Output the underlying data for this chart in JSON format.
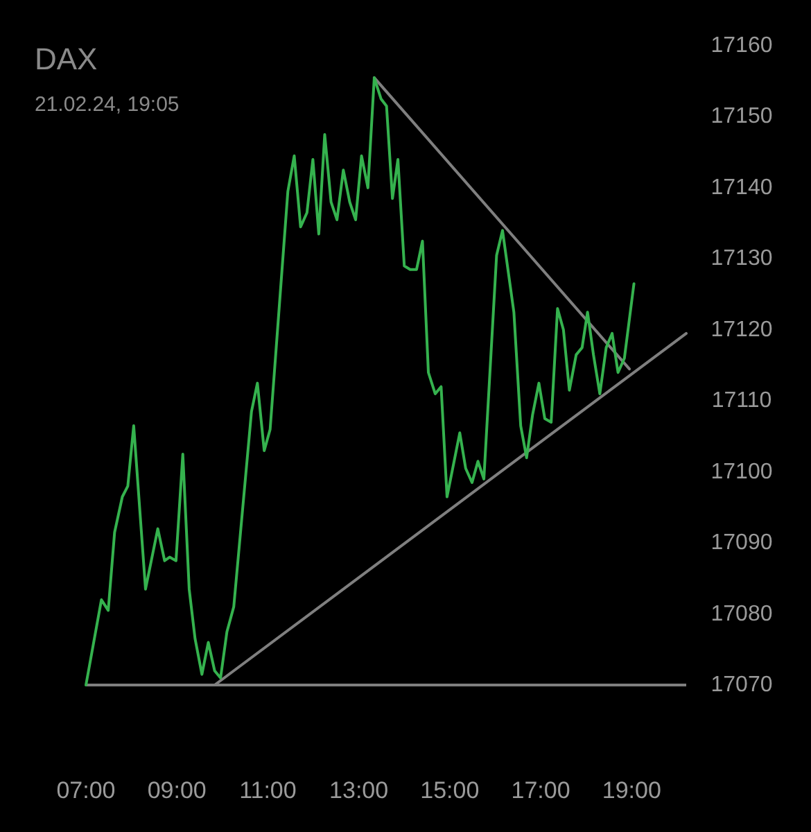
{
  "chart_data": {
    "type": "line",
    "title": "DAX",
    "subtitle": "21.02.24, 19:05",
    "x": [
      7.0,
      7.34,
      7.49,
      7.63,
      7.8,
      7.92,
      8.05,
      8.31,
      8.58,
      8.73,
      8.84,
      8.98,
      9.13,
      9.27,
      9.4,
      9.55,
      9.69,
      9.83,
      9.96,
      10.1,
      10.25,
      10.64,
      10.77,
      10.92,
      11.05,
      11.44,
      11.58,
      11.72,
      11.86,
      11.99,
      12.12,
      12.25,
      12.39,
      12.52,
      12.66,
      12.8,
      12.93,
      13.06,
      13.2,
      13.34,
      13.49,
      13.61,
      13.74,
      13.86,
      14.0,
      14.13,
      14.27,
      14.4,
      14.53,
      14.68,
      14.81,
      14.94,
      15.22,
      15.35,
      15.49,
      15.62,
      15.75,
      16.03,
      16.16,
      16.41,
      16.56,
      16.69,
      16.82,
      16.96,
      17.09,
      17.23,
      17.37,
      17.5,
      17.63,
      17.78,
      17.91,
      18.03,
      18.16,
      18.3,
      18.44,
      18.57,
      18.7,
      18.84,
      19.05
    ],
    "series": [
      {
        "color": "#35b24e",
        "values": [
          17070,
          17082,
          17080.5,
          17091.5,
          17096.5,
          17098,
          17106.5,
          17083.5,
          17092,
          17087.5,
          17088,
          17087.5,
          17102.5,
          17083.5,
          17076.5,
          17071.5,
          17076,
          17072,
          17071,
          17077.5,
          17081,
          17108.5,
          17112.5,
          17103,
          17106,
          17139.5,
          17144.5,
          17134.5,
          17136.5,
          17144,
          17133.5,
          17147.5,
          17138,
          17135.5,
          17142.5,
          17138,
          17135.5,
          17144.5,
          17140,
          17155.5,
          17152.5,
          17151.5,
          17138.5,
          17144,
          17129,
          17128.5,
          17128.5,
          17132.5,
          17114,
          17111,
          17112,
          17096.5,
          17105.5,
          17100.5,
          17098.5,
          17101.5,
          17099,
          17130.5,
          17134,
          17122.5,
          17106.5,
          17102,
          17108,
          17112.5,
          17107.5,
          17107,
          17123,
          17120,
          17111.5,
          17116.5,
          17117.5,
          17122.5,
          17116.5,
          17111,
          17117.5,
          17119.5,
          17114,
          17116,
          17126.5
        ]
      },
      {
        "color": "#7f7f7f",
        "x": [
          9.83,
          20.2
        ],
        "values": [
          17070,
          17119.5
        ]
      },
      {
        "color": "#7f7f7f",
        "x": [
          13.34,
          18.95
        ],
        "values": [
          17155.5,
          17114.5
        ]
      }
    ],
    "xlim": [
      7,
      20.2
    ],
    "xticks": [
      {
        "value": 7,
        "label": "07:00"
      },
      {
        "value": 9,
        "label": "09:00"
      },
      {
        "value": 11,
        "label": "11:00"
      },
      {
        "value": 13,
        "label": "13:00"
      },
      {
        "value": 15,
        "label": "15:00"
      },
      {
        "value": 17,
        "label": "17:00"
      },
      {
        "value": 19,
        "label": "19:00"
      }
    ],
    "ylim": [
      17070,
      17160
    ],
    "yticks": [
      17070,
      17080,
      17090,
      17100,
      17110,
      17120,
      17130,
      17140,
      17150,
      17160
    ]
  }
}
